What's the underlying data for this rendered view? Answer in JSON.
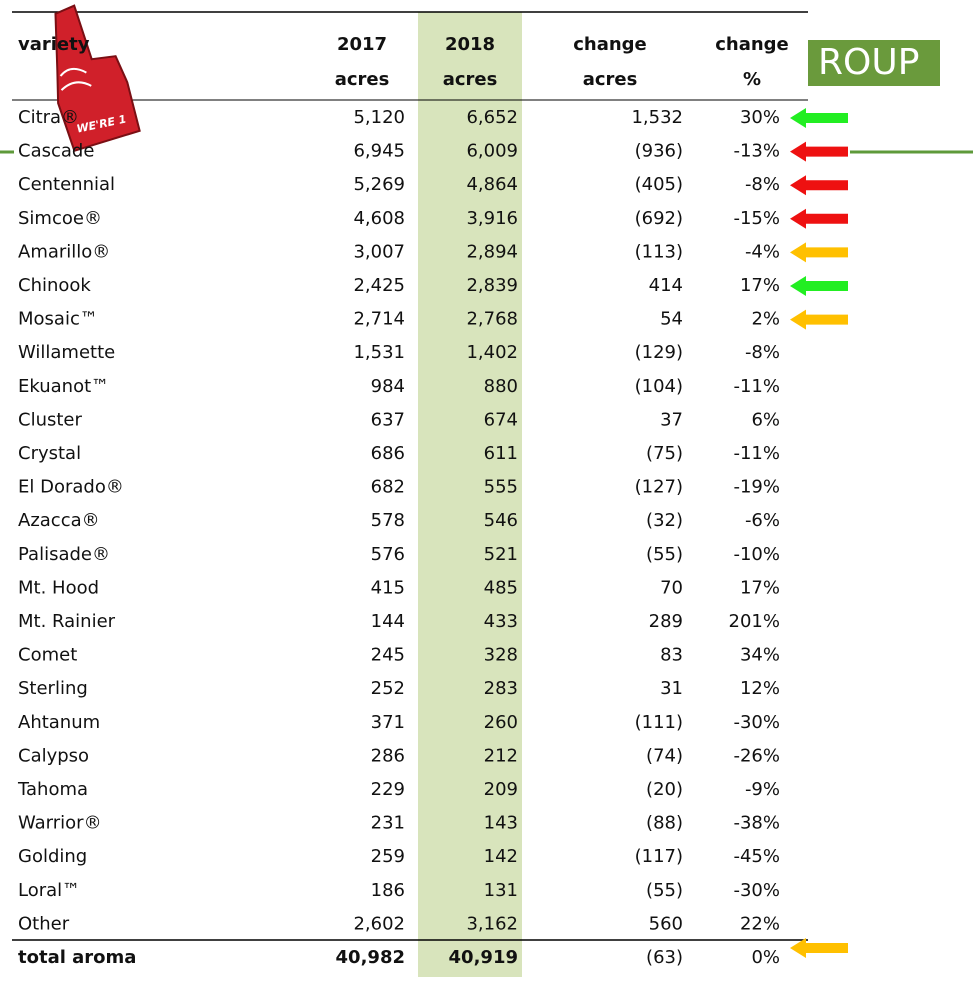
{
  "logo_text": "ROUP",
  "badge_text": "WE'RE 1",
  "table": {
    "header": [
      [
        "variety"
      ],
      [
        "2017",
        "acres"
      ],
      [
        "2018",
        "acres"
      ],
      [
        "change",
        "acres"
      ],
      [
        "change",
        "%"
      ]
    ],
    "rows": [
      [
        "Citra®",
        "5,120",
        "6,652",
        "1,532",
        "30%"
      ],
      [
        "Cascade",
        "6,945",
        "6,009",
        "(936)",
        "-13%"
      ],
      [
        "Centennial",
        "5,269",
        "4,864",
        "(405)",
        "-8%"
      ],
      [
        "Simcoe®",
        "4,608",
        "3,916",
        "(692)",
        "-15%"
      ],
      [
        "Amarillo®",
        "3,007",
        "2,894",
        "(113)",
        "-4%"
      ],
      [
        "Chinook",
        "2,425",
        "2,839",
        "414",
        "17%"
      ],
      [
        "Mosaic™",
        "2,714",
        "2,768",
        "54",
        "2%"
      ],
      [
        "Willamette",
        "1,531",
        "1,402",
        "(129)",
        "-8%"
      ],
      [
        "Ekuanot™",
        "984",
        "880",
        "(104)",
        "-11%"
      ],
      [
        "Cluster",
        "637",
        "674",
        "37",
        "6%"
      ],
      [
        "Crystal",
        "686",
        "611",
        "(75)",
        "-11%"
      ],
      [
        "El Dorado®",
        "682",
        "555",
        "(127)",
        "-19%"
      ],
      [
        "Azacca®",
        "578",
        "546",
        "(32)",
        "-6%"
      ],
      [
        "Palisade®",
        "576",
        "521",
        "(55)",
        "-10%"
      ],
      [
        "Mt. Hood",
        "415",
        "485",
        "70",
        "17%"
      ],
      [
        "Mt. Rainier",
        "144",
        "433",
        "289",
        "201%"
      ],
      [
        "Comet",
        "245",
        "328",
        "83",
        "34%"
      ],
      [
        "Sterling",
        "252",
        "283",
        "31",
        "12%"
      ],
      [
        "Ahtanum",
        "371",
        "260",
        "(111)",
        "-30%"
      ],
      [
        "Calypso",
        "286",
        "212",
        "(74)",
        "-26%"
      ],
      [
        "Tahoma",
        "229",
        "209",
        "(20)",
        "-9%"
      ],
      [
        "Warrior®",
        "231",
        "143",
        "(88)",
        "-38%"
      ],
      [
        "Golding",
        "259",
        "142",
        "(117)",
        "-45%"
      ],
      [
        "Loral™",
        "186",
        "131",
        "(55)",
        "-30%"
      ],
      [
        "Other",
        "2,602",
        "3,162",
        "560",
        "22%"
      ]
    ],
    "total": [
      "total aroma",
      "40,982",
      "40,919",
      "(63)",
      "0%"
    ]
  }
}
